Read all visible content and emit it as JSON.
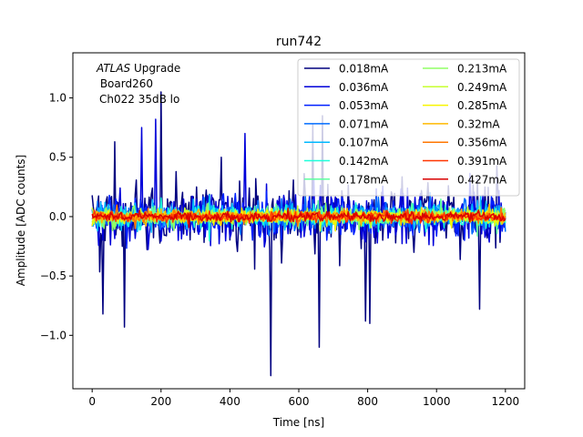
{
  "chart_data": {
    "type": "line",
    "title": "run742",
    "xlabel": "Time [ns]",
    "ylabel": "Amplitude [ADC counts]",
    "xlim": [
      -56,
      1256
    ],
    "ylim": [
      -1.45,
      1.38
    ],
    "xticks": [
      0,
      200,
      400,
      600,
      800,
      1000,
      1200
    ],
    "xtick_labels": [
      "0",
      "200",
      "400",
      "600",
      "800",
      "1000",
      "1200"
    ],
    "yticks": [
      -1.0,
      -0.5,
      0.0,
      0.5,
      1.0
    ],
    "ytick_labels": [
      "−1.0",
      "−0.5",
      "0.0",
      "0.5",
      "1.0"
    ],
    "x_start": 0,
    "x_end": 1200,
    "sample_step": 3.125,
    "legend_location": "upper right",
    "legend_columns": 2,
    "annotation": {
      "line1_italic": "ATLAS",
      "line1_rest": " Upgrade",
      "line2": " Board260",
      "line3": "Ch022 35dB lo"
    },
    "series": [
      {
        "name": "0.018mA",
        "color": "#00007f",
        "noise_amplitude": 0.33,
        "spikes": [
          [
            520,
            -1.34
          ],
          [
            200,
            1.05
          ],
          [
            65,
            0.63
          ],
          [
            660,
            -1.1
          ],
          [
            640,
            0.78
          ],
          [
            30,
            -0.82
          ],
          [
            95,
            -0.93
          ],
          [
            375,
            0.5
          ],
          [
            795,
            -0.88
          ],
          [
            1125,
            -0.78
          ],
          [
            805,
            -0.9
          ],
          [
            670,
            0.85
          ]
        ]
      },
      {
        "name": "0.036mA",
        "color": "#0000d9",
        "noise_amplitude": 0.27,
        "spikes": [
          [
            185,
            0.82
          ],
          [
            145,
            0.75
          ],
          [
            445,
            0.7
          ]
        ]
      },
      {
        "name": "0.053mA",
        "color": "#0020ff",
        "noise_amplitude": 0.2,
        "spikes": []
      },
      {
        "name": "0.071mA",
        "color": "#006cff",
        "noise_amplitude": 0.16,
        "spikes": []
      },
      {
        "name": "0.107mA",
        "color": "#00b8ff",
        "noise_amplitude": 0.13,
        "spikes": []
      },
      {
        "name": "0.142mA",
        "color": "#1cffdb",
        "noise_amplitude": 0.11,
        "spikes": []
      },
      {
        "name": "0.178mA",
        "color": "#5effa0",
        "noise_amplitude": 0.095,
        "spikes": []
      },
      {
        "name": "0.213mA",
        "color": "#91ff66",
        "noise_amplitude": 0.085,
        "spikes": []
      },
      {
        "name": "0.249mA",
        "color": "#c7ff30",
        "noise_amplitude": 0.075,
        "spikes": []
      },
      {
        "name": "0.285mA",
        "color": "#f8f500",
        "noise_amplitude": 0.07,
        "spikes": []
      },
      {
        "name": "0.32mA",
        "color": "#ffb900",
        "noise_amplitude": 0.065,
        "spikes": []
      },
      {
        "name": "0.356mA",
        "color": "#ff7700",
        "noise_amplitude": 0.06,
        "spikes": []
      },
      {
        "name": "0.391mA",
        "color": "#ff3500",
        "noise_amplitude": 0.055,
        "spikes": []
      },
      {
        "name": "0.427mA",
        "color": "#d90000",
        "noise_amplitude": 0.05,
        "spikes": []
      }
    ]
  }
}
